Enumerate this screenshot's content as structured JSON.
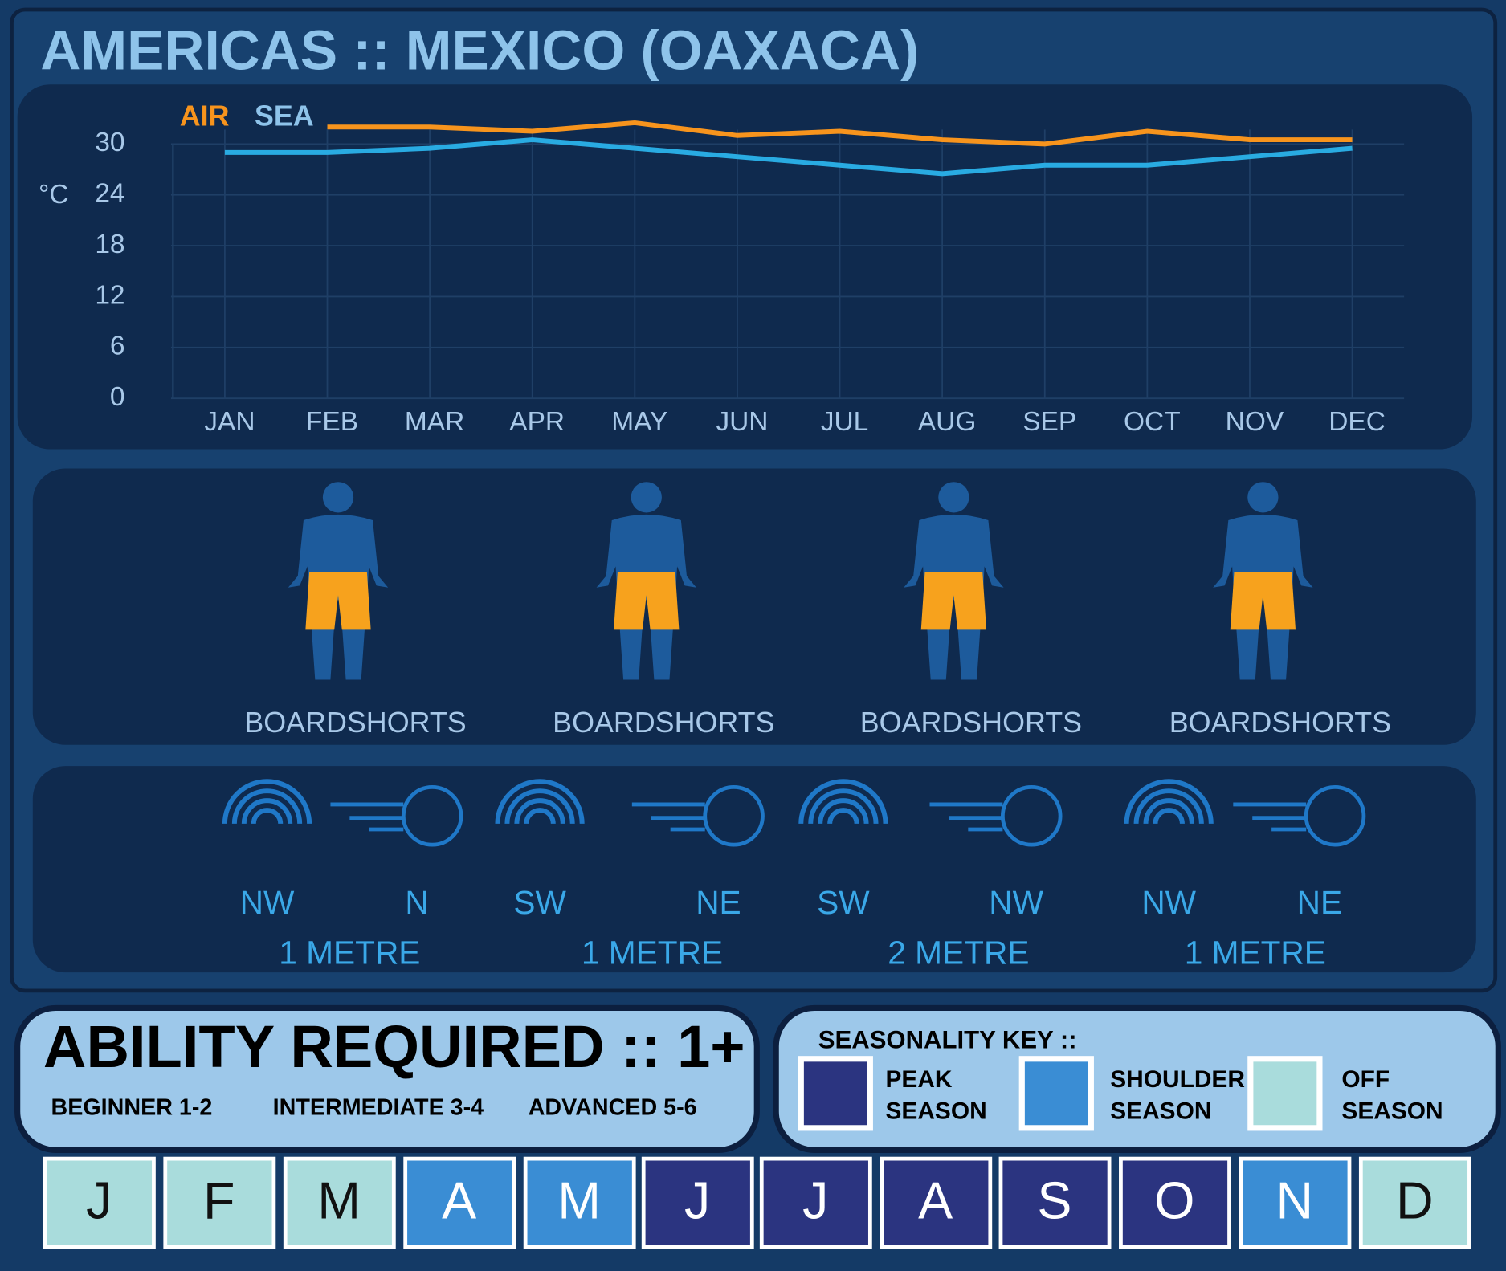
{
  "chart_data": {
    "type": "line",
    "title": "AMERICAS :: MEXICO (OAXACA)",
    "y_label": "°C",
    "categories": [
      "JAN",
      "FEB",
      "MAR",
      "APR",
      "MAY",
      "JUN",
      "JUL",
      "AUG",
      "SEP",
      "OCT",
      "NOV",
      "DEC"
    ],
    "series": [
      {
        "name": "AIR",
        "color": "#f7941d",
        "values": [
          null,
          32,
          32,
          31.5,
          32.5,
          31,
          31.5,
          30.5,
          30,
          31.5,
          30.5,
          30.5
        ]
      },
      {
        "name": "SEA",
        "color": "#29abe2",
        "values": [
          29,
          29,
          29.5,
          30.5,
          29.5,
          28.5,
          27.5,
          26.5,
          27.5,
          27.5,
          28.5,
          29.5
        ]
      }
    ],
    "ylim": [
      0,
      32.5
    ],
    "yticks": [
      0,
      6,
      12,
      18,
      24,
      30
    ],
    "grid": true
  },
  "wetsuits": [
    "BOARDSHORTS",
    "BOARDSHORTS",
    "BOARDSHORTS",
    "BOARDSHORTS"
  ],
  "conditions": [
    {
      "swell": "NW",
      "wind": "N",
      "size": "1 METRE"
    },
    {
      "swell": "SW",
      "wind": "NE",
      "size": "1 METRE"
    },
    {
      "swell": "SW",
      "wind": "NW",
      "size": "2 METRE"
    },
    {
      "swell": "NW",
      "wind": "NE",
      "size": "1 METRE"
    }
  ],
  "ability": {
    "title": "ABILITY REQUIRED :: 1+",
    "levels": [
      "BEGINNER 1-2",
      "INTERMEDIATE 3-4",
      "ADVANCED 5-6"
    ]
  },
  "seasonality": {
    "title": "SEASONALITY KEY ::",
    "key": [
      {
        "lines": [
          "PEAK",
          "SEASON"
        ],
        "color": "#2b3480"
      },
      {
        "lines": [
          "SHOULDER",
          "SEASON"
        ],
        "color": "#3a8dd4"
      },
      {
        "lines": [
          "OFF",
          "SEASON"
        ],
        "color": "#a9dcdc"
      }
    ],
    "months": [
      {
        "letter": "J",
        "color": "#a9dcdc"
      },
      {
        "letter": "F",
        "color": "#a9dcdc"
      },
      {
        "letter": "M",
        "color": "#a9dcdc"
      },
      {
        "letter": "A",
        "color": "#3a8dd4"
      },
      {
        "letter": "M",
        "color": "#3a8dd4"
      },
      {
        "letter": "J",
        "color": "#2b3480"
      },
      {
        "letter": "J",
        "color": "#2b3480"
      },
      {
        "letter": "A",
        "color": "#2b3480"
      },
      {
        "letter": "S",
        "color": "#2b3480"
      },
      {
        "letter": "O",
        "color": "#2b3480"
      },
      {
        "letter": "N",
        "color": "#3a8dd4"
      },
      {
        "letter": "D",
        "color": "#a9dcdc"
      }
    ]
  }
}
